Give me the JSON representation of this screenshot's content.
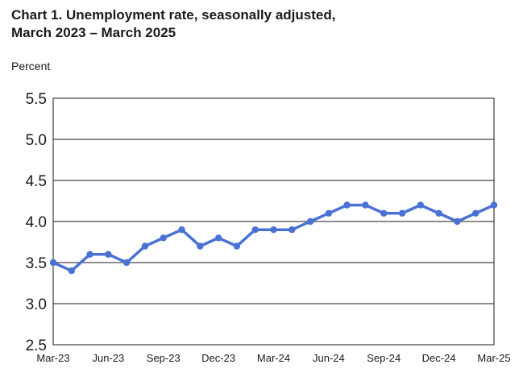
{
  "chart_data": {
    "type": "line",
    "title_line1": "Chart 1. Unemployment rate, seasonally adjusted,",
    "title_line2": "March 2023 – March 2025",
    "ylabel": "Percent",
    "xlabel": "",
    "ylim": [
      2.5,
      5.5
    ],
    "y_ticks": [
      "2.5",
      "3.0",
      "3.5",
      "4.0",
      "4.5",
      "5.0",
      "5.5"
    ],
    "x": [
      "Mar-23",
      "Apr-23",
      "May-23",
      "Jun-23",
      "Jul-23",
      "Aug-23",
      "Sep-23",
      "Oct-23",
      "Nov-23",
      "Dec-23",
      "Jan-24",
      "Feb-24",
      "Mar-24",
      "Apr-24",
      "May-24",
      "Jun-24",
      "Jul-24",
      "Aug-24",
      "Sep-24",
      "Oct-24",
      "Nov-24",
      "Dec-24",
      "Jan-25",
      "Feb-25",
      "Mar-25"
    ],
    "x_tick_labels": [
      "Mar-23",
      "Jun-23",
      "Sep-23",
      "Dec-23",
      "Mar-24",
      "Jun-24",
      "Sep-24",
      "Dec-24",
      "Mar-25"
    ],
    "series": [
      {
        "values": [
          3.5,
          3.4,
          3.6,
          3.6,
          3.5,
          3.7,
          3.8,
          3.9,
          3.7,
          3.8,
          3.7,
          3.9,
          3.9,
          3.9,
          4.0,
          4.1,
          4.2,
          4.2,
          4.1,
          4.1,
          4.2,
          4.1,
          4.0,
          4.1,
          4.2
        ],
        "color": "#4a72d4"
      }
    ],
    "grid": "horizontal",
    "gridline_color": "#1a1a1a",
    "legend": "none"
  }
}
